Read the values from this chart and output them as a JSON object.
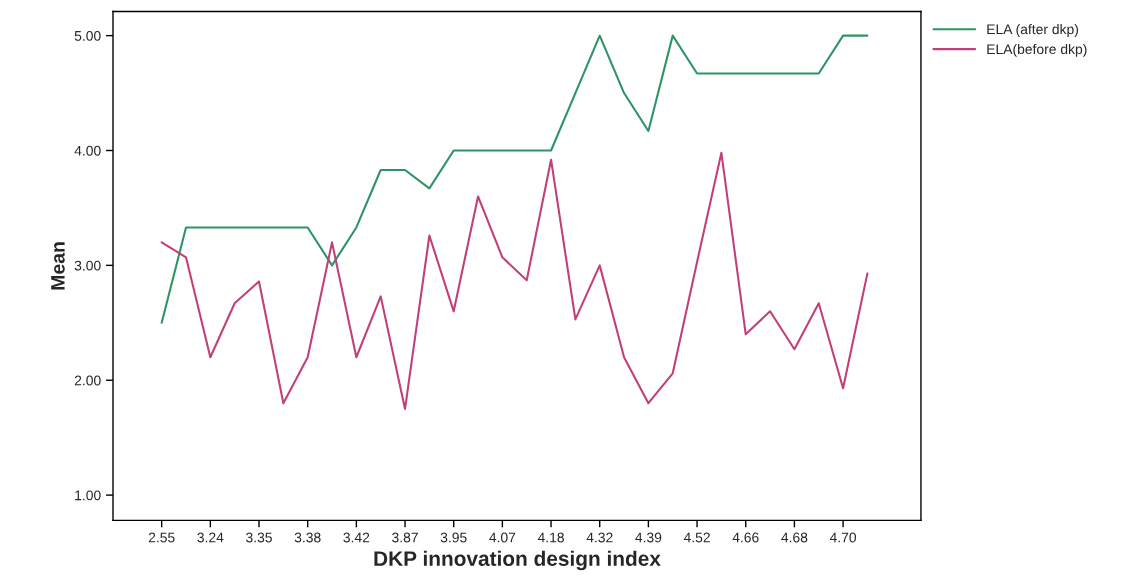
{
  "chart_data": {
    "type": "line",
    "xlabel": "DKP innovation design index",
    "ylabel": "Mean",
    "categories": [
      "2.55",
      null,
      "3.24",
      null,
      "3.35",
      null,
      "3.38",
      null,
      "3.42",
      null,
      "3.87",
      null,
      "3.95",
      null,
      "4.07",
      null,
      "4.18",
      null,
      "4.32",
      null,
      "4.39",
      null,
      "4.52",
      null,
      "4.66",
      null,
      "4.68",
      null,
      "4.70",
      null
    ],
    "series": [
      {
        "name": "ELA (after dkp)",
        "color": "#2e9466",
        "values": [
          2.5,
          3.33,
          3.33,
          3.33,
          3.33,
          3.33,
          3.33,
          3.0,
          3.33,
          3.83,
          3.83,
          3.67,
          4.0,
          4.0,
          4.0,
          4.0,
          4.0,
          4.5,
          5.0,
          4.5,
          4.17,
          5.0,
          4.67,
          4.67,
          4.67,
          4.67,
          4.67,
          4.67,
          5.0,
          5.0
        ]
      },
      {
        "name": "ELA(before dkp)",
        "color": "#c2407a",
        "values": [
          3.2,
          3.07,
          2.2,
          2.67,
          2.86,
          1.8,
          2.2,
          3.2,
          2.2,
          2.73,
          1.75,
          3.26,
          2.6,
          3.6,
          3.07,
          2.87,
          3.92,
          2.53,
          3.0,
          2.2,
          1.8,
          2.06,
          3.03,
          3.98,
          2.4,
          2.6,
          2.27,
          2.67,
          1.93,
          2.93
        ]
      }
    ],
    "ylim": [
      0.78,
      5.21
    ],
    "yticks": [
      {
        "value": 1,
        "label": "1.00"
      },
      {
        "value": 2,
        "label": "2.00"
      },
      {
        "value": 3,
        "label": "3.00"
      },
      {
        "value": 4,
        "label": "4.00"
      },
      {
        "value": 5,
        "label": "5.00"
      }
    ],
    "legend": "top right",
    "grid": false,
    "marker": "none",
    "line_style": "solid"
  }
}
